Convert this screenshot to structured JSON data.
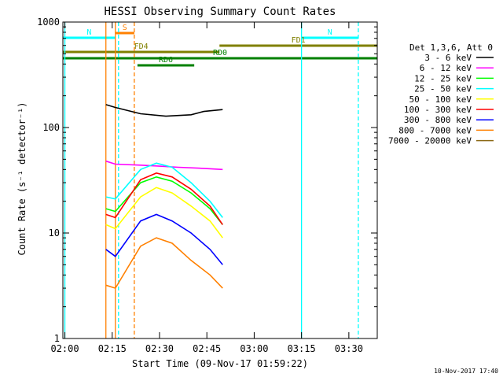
{
  "chart_data": {
    "type": "line",
    "title": "HESSI Observing Summary Count Rates",
    "xlabel": "Start Time (09-Nov-17 01:59:22)",
    "ylabel": "Count Rate (s⁻¹ detector⁻¹)",
    "yscale": "log",
    "ylim": [
      1,
      1000
    ],
    "xlim": [
      "01:59:22",
      "03:39:00"
    ],
    "x_ticks": [
      "02:00",
      "02:15",
      "02:30",
      "02:45",
      "03:00",
      "03:15",
      "03:30"
    ],
    "y_ticks": [
      "1",
      "10",
      "100",
      "1000"
    ],
    "legend_title": "Det 1,3,6, Att 0",
    "legend_placement": "right",
    "grid": false,
    "series": [
      {
        "name": "3 - 6 keV",
        "color": "#000000",
        "x": [
          "02:13",
          "02:16",
          "02:24",
          "02:32",
          "02:40",
          "02:44",
          "02:50"
        ],
        "values": [
          165,
          155,
          135,
          128,
          132,
          142,
          148
        ]
      },
      {
        "name": "6 - 12 keV",
        "color": "#ff00ff",
        "x": [
          "02:13",
          "02:16",
          "02:24",
          "02:30",
          "02:36",
          "02:44",
          "02:50"
        ],
        "values": [
          48,
          45,
          44,
          43,
          42,
          41,
          40
        ]
      },
      {
        "name": "12 - 25 keV",
        "color": "#00ff00",
        "x": [
          "02:13",
          "02:16",
          "02:24",
          "02:29",
          "02:34",
          "02:40",
          "02:46",
          "02:50"
        ],
        "values": [
          17,
          16,
          30,
          34,
          31,
          24,
          17,
          12
        ]
      },
      {
        "name": "25 - 50 keV",
        "color": "#00ffff",
        "x": [
          "02:13",
          "02:16",
          "02:24",
          "02:29",
          "02:34",
          "02:40",
          "02:46",
          "02:50"
        ],
        "values": [
          22,
          21,
          40,
          46,
          42,
          30,
          20,
          14
        ]
      },
      {
        "name": "50 - 100 keV",
        "color": "#ffff00",
        "x": [
          "02:13",
          "02:16",
          "02:24",
          "02:29",
          "02:34",
          "02:40",
          "02:46",
          "02:50"
        ],
        "values": [
          12,
          11,
          22,
          27,
          24,
          18,
          13,
          9
        ]
      },
      {
        "name": "100 - 300 keV",
        "color": "#ff0000",
        "x": [
          "02:13",
          "02:16",
          "02:24",
          "02:29",
          "02:34",
          "02:40",
          "02:46",
          "02:50"
        ],
        "values": [
          15,
          14,
          32,
          37,
          34,
          26,
          18,
          12
        ]
      },
      {
        "name": "300 - 800 keV",
        "color": "#0000ff",
        "x": [
          "02:13",
          "02:16",
          "02:24",
          "02:29",
          "02:34",
          "02:40",
          "02:46",
          "02:50"
        ],
        "values": [
          7,
          6,
          13,
          15,
          13,
          10,
          7,
          5
        ]
      },
      {
        "name": "800 - 7000 keV",
        "color": "#ff8000",
        "x": [
          "02:13",
          "02:16",
          "02:24",
          "02:29",
          "02:34",
          "02:40",
          "02:46",
          "02:50"
        ],
        "values": [
          3.2,
          3,
          7.5,
          9,
          8,
          5.5,
          4,
          3
        ]
      },
      {
        "name": "7000 - 20000 keV",
        "color": "#8b6914",
        "x": [],
        "values": []
      }
    ],
    "annotations": [
      {
        "label": "S",
        "color": "#ff8000",
        "start": "02:16",
        "end": "02:22"
      },
      {
        "label": "N",
        "color": "#00ffff",
        "start": "01:59",
        "end": "02:16"
      },
      {
        "label": "N",
        "color": "#00ffff",
        "start": "03:15",
        "end": "03:33"
      },
      {
        "label": "FD1",
        "color": "#808000",
        "start": "02:49",
        "end": "03:39"
      },
      {
        "label": "FD4",
        "color": "#808000",
        "start": "01:59",
        "end": "02:49"
      },
      {
        "label": "RD0",
        "color": "#008000",
        "start": "01:59",
        "end": "03:39"
      },
      {
        "label": "RD6",
        "color": "#008000",
        "start": "02:23",
        "end": "02:41"
      }
    ],
    "vlines": [
      {
        "time": "02:13",
        "color": "#ff8000",
        "style": "solid"
      },
      {
        "time": "02:16",
        "color": "#ff8000",
        "style": "solid"
      },
      {
        "time": "02:22",
        "color": "#ff8000",
        "style": "dashed"
      },
      {
        "time": "02:17",
        "color": "#00ffff",
        "style": "dashed"
      },
      {
        "time": "03:15",
        "color": "#00ffff",
        "style": "solid"
      },
      {
        "time": "03:33",
        "color": "#00ffff",
        "style": "dashed"
      },
      {
        "time": "02:00",
        "color": "#00ffff",
        "style": "solid"
      }
    ]
  },
  "stamp": "10-Nov-2017 17:40"
}
